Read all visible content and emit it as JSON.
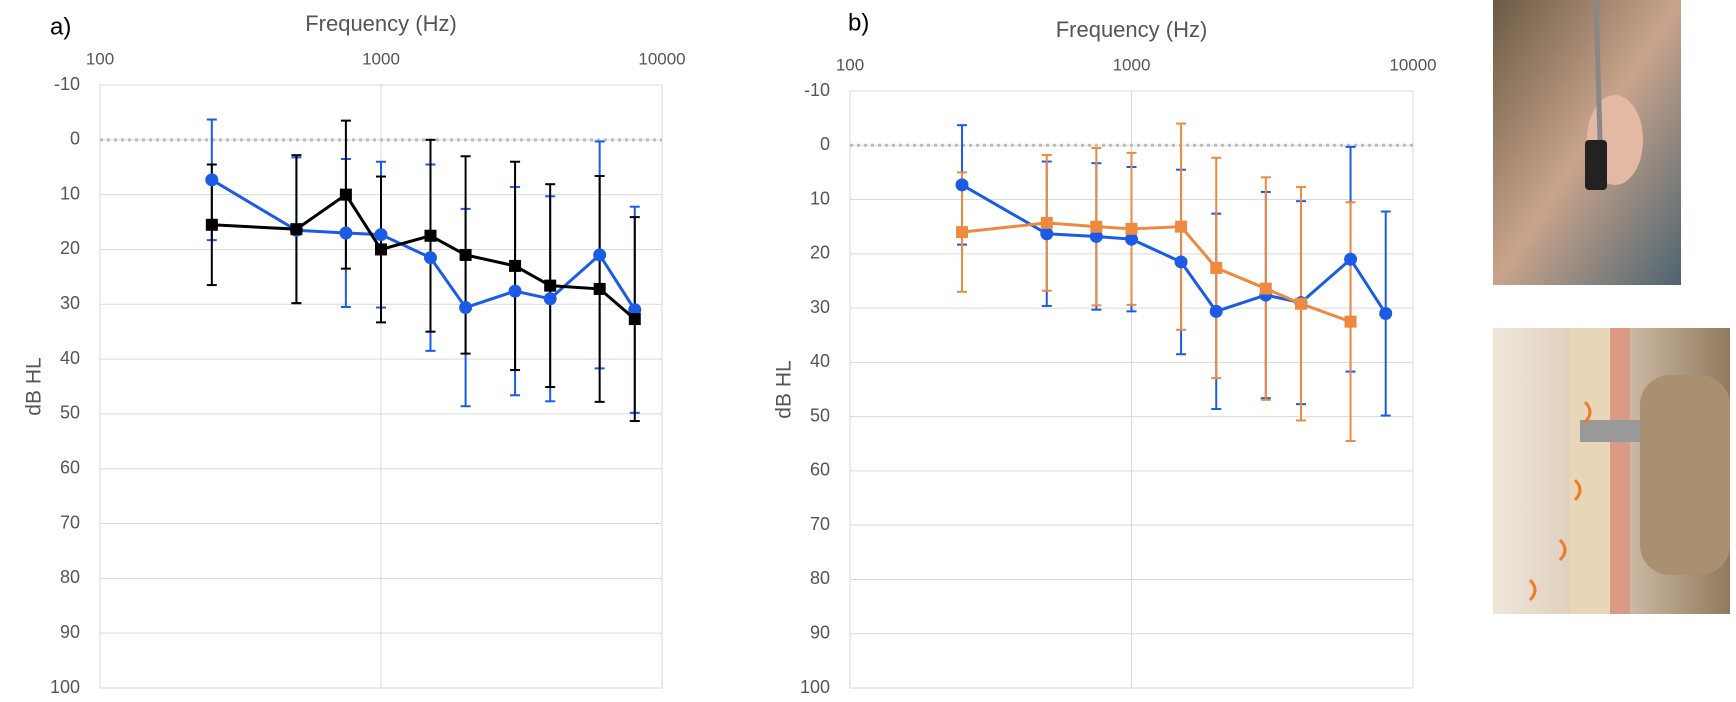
{
  "chart_data": [
    {
      "type": "line",
      "panel_label": "a)",
      "x_label": "Frequency (Hz)",
      "y_label": "dB HL",
      "x_scale": "log",
      "x_axis_position": "top",
      "y_inverted": true,
      "grid": true,
      "zero_line": true,
      "xlim": [
        100,
        10000
      ],
      "xticks": [
        100,
        1000,
        10000
      ],
      "ylim": [
        -10,
        100
      ],
      "yticks": [
        -10,
        0,
        10,
        20,
        30,
        40,
        50,
        60,
        70,
        80,
        90,
        100
      ],
      "x": [
        250,
        500,
        750,
        1000,
        1500,
        2000,
        3000,
        4000,
        6000,
        8000
      ],
      "series": [
        {
          "color": "#1a5ce6",
          "marker": "circle",
          "values": [
            7.3,
            16.5,
            17,
            17.3,
            21.5,
            30.6,
            27.6,
            29,
            21,
            31
          ],
          "errors": [
            11,
            13.3,
            13.5,
            13.3,
            17,
            18,
            19,
            18.7,
            20.7,
            18.8
          ]
        },
        {
          "color": "#000000",
          "marker": "square",
          "values": [
            15.5,
            16.3,
            10,
            20,
            17.5,
            21,
            23,
            26.6,
            27.2,
            32.7
          ],
          "errors": [
            11,
            13.5,
            13.5,
            13.3,
            17.5,
            18,
            19,
            18.5,
            20.6,
            18.6
          ]
        }
      ]
    },
    {
      "type": "line",
      "panel_label": "b)",
      "x_label": "Frequency (Hz)",
      "y_label": "dB HL",
      "x_scale": "log",
      "x_axis_position": "top",
      "y_inverted": true,
      "grid": true,
      "zero_line": true,
      "xlim": [
        100,
        10000
      ],
      "xticks": [
        100,
        1000,
        10000
      ],
      "ylim": [
        -10,
        100
      ],
      "yticks": [
        -10,
        0,
        10,
        20,
        30,
        40,
        50,
        60,
        70,
        80,
        90,
        100
      ],
      "x": [
        250,
        500,
        750,
        1000,
        1500,
        2000,
        3000,
        4000,
        6000,
        8000
      ],
      "series": [
        {
          "color": "#1a5ce6",
          "marker": "circle",
          "values": [
            7.3,
            16.3,
            16.8,
            17.3,
            21.5,
            30.6,
            27.6,
            29,
            21,
            31
          ],
          "errors": [
            11,
            13.3,
            13.5,
            13.3,
            17,
            18,
            19,
            18.7,
            20.7,
            18.8
          ]
        },
        {
          "color": "#ed8a3f",
          "marker": "square",
          "values": [
            16,
            14.3,
            15,
            15.4,
            15,
            22.6,
            26.4,
            29.2,
            32.5,
            null
          ],
          "errors": [
            11,
            12.5,
            14.5,
            14,
            19,
            20.3,
            20.5,
            21.5,
            22,
            null
          ]
        }
      ]
    }
  ]
}
